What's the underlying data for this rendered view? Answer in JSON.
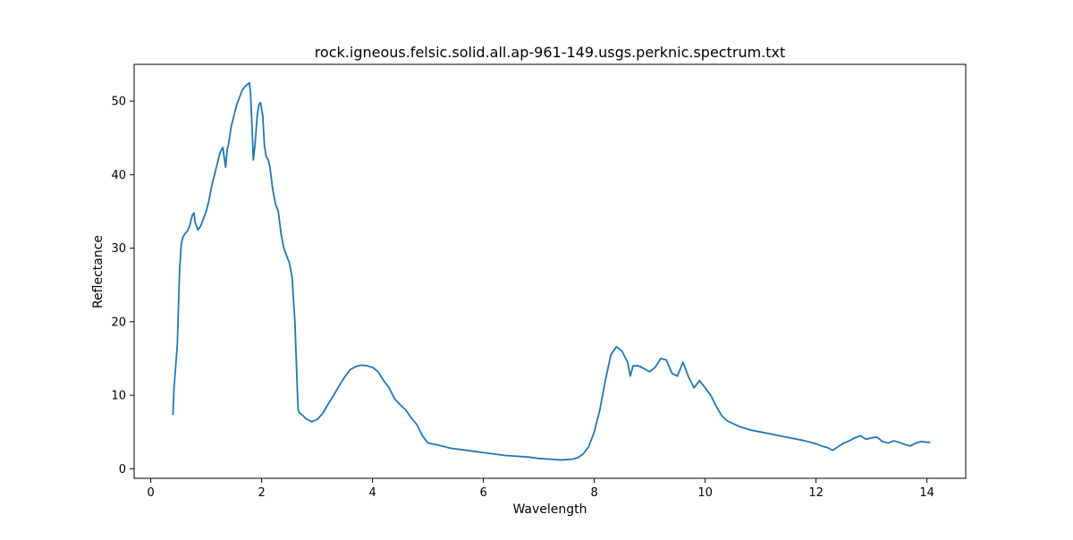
{
  "chart_data": {
    "type": "line",
    "title": "rock.igneous.felsic.solid.all.ap-961-149.usgs.perknic.spectrum.txt",
    "xlabel": "Wavelength",
    "ylabel": "Reflectance",
    "xlim": [
      -0.3,
      14.7
    ],
    "ylim": [
      -1.3,
      55.0
    ],
    "xticks": [
      0,
      2,
      4,
      6,
      8,
      10,
      12,
      14
    ],
    "yticks": [
      0,
      10,
      20,
      30,
      40,
      50
    ],
    "grid": false,
    "legend": "none",
    "series": [
      {
        "color": "#1f77b4",
        "x": [
          0.4,
          0.42,
          0.45,
          0.48,
          0.5,
          0.52,
          0.55,
          0.58,
          0.62,
          0.66,
          0.7,
          0.75,
          0.78,
          0.8,
          0.85,
          0.9,
          0.95,
          1.0,
          1.05,
          1.1,
          1.15,
          1.2,
          1.25,
          1.3,
          1.35,
          1.38,
          1.4,
          1.42,
          1.45,
          1.5,
          1.55,
          1.6,
          1.65,
          1.7,
          1.75,
          1.78,
          1.8,
          1.83,
          1.85,
          1.88,
          1.9,
          1.92,
          1.95,
          1.98,
          2.02,
          2.05,
          2.08,
          2.12,
          2.15,
          2.2,
          2.25,
          2.3,
          2.35,
          2.4,
          2.45,
          2.5,
          2.55,
          2.6,
          2.65,
          2.66,
          2.68,
          2.7,
          2.75,
          2.8,
          2.9,
          3.0,
          3.1,
          3.2,
          3.3,
          3.4,
          3.5,
          3.6,
          3.7,
          3.8,
          3.9,
          4.0,
          4.1,
          4.2,
          4.3,
          4.4,
          4.5,
          4.6,
          4.7,
          4.8,
          4.9,
          5.0,
          5.2,
          5.4,
          5.6,
          5.8,
          6.0,
          6.2,
          6.4,
          6.6,
          6.8,
          7.0,
          7.2,
          7.4,
          7.6,
          7.7,
          7.8,
          7.9,
          8.0,
          8.1,
          8.2,
          8.3,
          8.4,
          8.5,
          8.6,
          8.65,
          8.7,
          8.8,
          8.9,
          9.0,
          9.1,
          9.2,
          9.3,
          9.4,
          9.5,
          9.6,
          9.7,
          9.8,
          9.9,
          10.0,
          10.1,
          10.2,
          10.3,
          10.4,
          10.6,
          10.8,
          11.0,
          11.2,
          11.4,
          11.6,
          11.8,
          12.0,
          12.1,
          12.2,
          12.3,
          12.4,
          12.5,
          12.6,
          12.7,
          12.8,
          12.9,
          13.0,
          13.1,
          13.2,
          13.3,
          13.4,
          13.5,
          13.6,
          13.7,
          13.8,
          13.9,
          14.0,
          14.05
        ],
        "y": [
          7.4,
          11.0,
          14.0,
          17.0,
          22.0,
          27.0,
          30.5,
          31.5,
          32.0,
          32.3,
          33.0,
          34.5,
          34.8,
          33.5,
          32.5,
          33.0,
          34.0,
          35.0,
          36.5,
          38.5,
          40.0,
          41.5,
          43.0,
          43.7,
          41.0,
          43.5,
          44.0,
          45.0,
          46.5,
          48.0,
          49.5,
          50.5,
          51.5,
          52.0,
          52.3,
          52.5,
          51.0,
          46.0,
          42.0,
          44.0,
          46.0,
          48.0,
          49.5,
          49.8,
          48.0,
          44.0,
          42.5,
          42.0,
          41.0,
          38.0,
          36.0,
          35.0,
          32.0,
          30.0,
          29.0,
          28.0,
          26.0,
          20.0,
          9.5,
          8.0,
          7.6,
          7.5,
          7.2,
          6.8,
          6.4,
          6.7,
          7.5,
          8.8,
          10.0,
          11.3,
          12.5,
          13.5,
          13.9,
          14.1,
          14.0,
          13.8,
          13.2,
          12.0,
          11.0,
          9.5,
          8.7,
          8.0,
          6.9,
          6.0,
          4.5,
          3.5,
          3.2,
          2.8,
          2.6,
          2.4,
          2.2,
          2.0,
          1.8,
          1.7,
          1.6,
          1.4,
          1.3,
          1.2,
          1.3,
          1.5,
          2.0,
          3.0,
          5.0,
          8.0,
          12.0,
          15.5,
          16.6,
          16.0,
          14.5,
          12.6,
          14.0,
          14.0,
          13.6,
          13.2,
          13.8,
          15.0,
          14.8,
          13.0,
          12.6,
          14.5,
          12.5,
          11.0,
          12.0,
          11.0,
          10.0,
          8.5,
          7.2,
          6.5,
          5.8,
          5.3,
          5.0,
          4.7,
          4.4,
          4.1,
          3.8,
          3.4,
          3.1,
          2.9,
          2.5,
          3.0,
          3.5,
          3.8,
          4.2,
          4.5,
          4.0,
          4.2,
          4.3,
          3.7,
          3.5,
          3.8,
          3.6,
          3.3,
          3.1,
          3.5,
          3.7,
          3.6,
          3.6
        ]
      }
    ]
  }
}
